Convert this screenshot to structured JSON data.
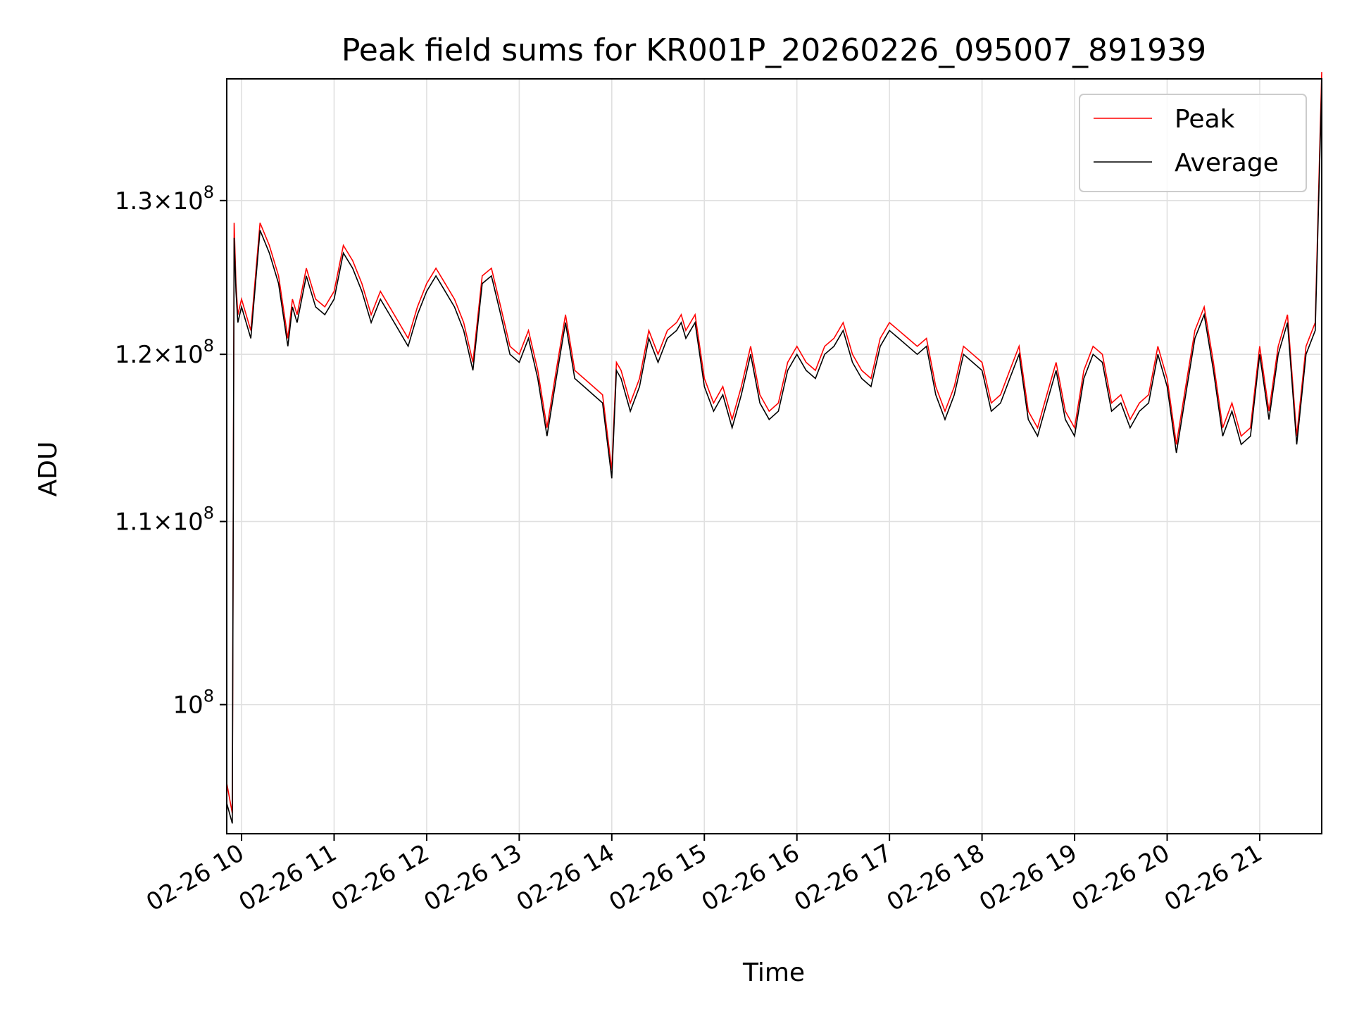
{
  "chart_data": {
    "type": "line",
    "title": "Peak field sums for KR001P_20260226_095007_891939",
    "xlabel": "Time",
    "ylabel": "ADU",
    "y_scale": "log",
    "ylim": [
      93500000,
      138500000
    ],
    "xlim_hours": [
      9.84,
      21.67
    ],
    "grid": true,
    "legend_position": "upper right",
    "x_ticks": [
      {
        "value": 10,
        "label": "02-26 10"
      },
      {
        "value": 11,
        "label": "02-26 11"
      },
      {
        "value": 12,
        "label": "02-26 12"
      },
      {
        "value": 13,
        "label": "02-26 13"
      },
      {
        "value": 14,
        "label": "02-26 14"
      },
      {
        "value": 15,
        "label": "02-26 15"
      },
      {
        "value": 16,
        "label": "02-26 16"
      },
      {
        "value": 17,
        "label": "02-26 17"
      },
      {
        "value": 18,
        "label": "02-26 18"
      },
      {
        "value": 19,
        "label": "02-26 19"
      },
      {
        "value": 20,
        "label": "02-26 20"
      },
      {
        "value": 21,
        "label": "02-26 21"
      }
    ],
    "y_ticks": [
      {
        "value": 100000000,
        "mantissa": "",
        "exponent": "8"
      },
      {
        "value": 110000000,
        "mantissa": "1.1",
        "exponent": "8"
      },
      {
        "value": 120000000,
        "mantissa": "1.2",
        "exponent": "8"
      },
      {
        "value": 130000000,
        "mantissa": "1.3",
        "exponent": "8"
      }
    ],
    "series": [
      {
        "name": "Peak",
        "color": "#ff0000"
      },
      {
        "name": "Average",
        "color": "#000000"
      }
    ],
    "x_hours": [
      9.84,
      9.9,
      9.92,
      9.94,
      9.96,
      10.0,
      10.1,
      10.2,
      10.3,
      10.4,
      10.5,
      10.55,
      10.6,
      10.7,
      10.8,
      10.9,
      11.0,
      11.1,
      11.2,
      11.3,
      11.4,
      11.5,
      11.6,
      11.7,
      11.8,
      11.9,
      12.0,
      12.1,
      12.2,
      12.3,
      12.4,
      12.5,
      12.6,
      12.7,
      12.8,
      12.9,
      13.0,
      13.1,
      13.2,
      13.3,
      13.4,
      13.5,
      13.6,
      13.7,
      13.8,
      13.9,
      14.0,
      14.05,
      14.1,
      14.2,
      14.3,
      14.4,
      14.5,
      14.6,
      14.7,
      14.75,
      14.8,
      14.85,
      14.9,
      15.0,
      15.1,
      15.2,
      15.3,
      15.4,
      15.5,
      15.6,
      15.7,
      15.8,
      15.9,
      16.0,
      16.1,
      16.2,
      16.3,
      16.4,
      16.5,
      16.6,
      16.7,
      16.8,
      16.9,
      17.0,
      17.1,
      17.2,
      17.3,
      17.4,
      17.5,
      17.6,
      17.7,
      17.8,
      17.9,
      18.0,
      18.1,
      18.2,
      18.3,
      18.4,
      18.5,
      18.6,
      18.7,
      18.8,
      18.9,
      19.0,
      19.1,
      19.2,
      19.3,
      19.4,
      19.5,
      19.6,
      19.7,
      19.8,
      19.9,
      20.0,
      20.1,
      20.2,
      20.3,
      20.4,
      20.5,
      20.6,
      20.7,
      20.8,
      20.9,
      21.0,
      21.1,
      21.2,
      21.3,
      21.4,
      21.5,
      21.6,
      21.67
    ],
    "average": [
      95000000,
      94000000,
      127500000,
      124000000,
      122000000,
      123000000,
      121000000,
      128000000,
      126500000,
      124500000,
      120500000,
      123000000,
      122000000,
      125000000,
      123000000,
      122500000,
      123500000,
      126500000,
      125500000,
      124000000,
      122000000,
      123500000,
      122500000,
      121500000,
      120500000,
      122500000,
      124000000,
      125000000,
      124000000,
      123000000,
      121500000,
      119000000,
      124500000,
      125000000,
      122500000,
      120000000,
      119500000,
      121000000,
      118500000,
      115000000,
      118500000,
      122000000,
      118500000,
      118000000,
      117500000,
      117000000,
      112500000,
      119000000,
      118500000,
      116500000,
      118000000,
      121000000,
      119500000,
      121000000,
      121500000,
      122000000,
      121000000,
      121500000,
      122000000,
      118000000,
      116500000,
      117500000,
      115500000,
      117500000,
      120000000,
      117000000,
      116000000,
      116500000,
      119000000,
      120000000,
      119000000,
      118500000,
      120000000,
      120500000,
      121500000,
      119500000,
      118500000,
      118000000,
      120500000,
      121500000,
      121000000,
      120500000,
      120000000,
      120500000,
      117500000,
      116000000,
      117500000,
      120000000,
      119500000,
      119000000,
      116500000,
      117000000,
      118500000,
      120000000,
      116000000,
      115000000,
      117000000,
      119000000,
      116000000,
      115000000,
      118500000,
      120000000,
      119500000,
      116500000,
      117000000,
      115500000,
      116500000,
      117000000,
      120000000,
      118000000,
      114000000,
      117500000,
      121000000,
      122500000,
      119000000,
      115000000,
      116500000,
      114500000,
      115000000,
      120000000,
      116000000,
      120000000,
      122000000,
      114500000,
      120000000,
      121500000,
      138000000
    ],
    "peak": [
      96000000,
      94500000,
      128500000,
      124500000,
      122500000,
      123500000,
      121500000,
      128500000,
      127000000,
      125000000,
      121000000,
      123500000,
      122500000,
      125500000,
      123500000,
      123000000,
      124000000,
      127000000,
      126000000,
      124500000,
      122500000,
      124000000,
      123000000,
      122000000,
      121000000,
      123000000,
      124500000,
      125500000,
      124500000,
      123500000,
      122000000,
      119500000,
      125000000,
      125500000,
      123000000,
      120500000,
      120000000,
      121500000,
      119000000,
      115500000,
      119000000,
      122500000,
      119000000,
      118500000,
      118000000,
      117500000,
      113000000,
      119500000,
      119000000,
      117000000,
      118500000,
      121500000,
      120000000,
      121500000,
      122000000,
      122500000,
      121500000,
      122000000,
      122500000,
      118500000,
      117000000,
      118000000,
      116000000,
      118000000,
      120500000,
      117500000,
      116500000,
      117000000,
      119500000,
      120500000,
      119500000,
      119000000,
      120500000,
      121000000,
      122000000,
      120000000,
      119000000,
      118500000,
      121000000,
      122000000,
      121500000,
      121000000,
      120500000,
      121000000,
      118000000,
      116500000,
      118000000,
      120500000,
      120000000,
      119500000,
      117000000,
      117500000,
      119000000,
      120500000,
      116500000,
      115500000,
      117500000,
      119500000,
      116500000,
      115500000,
      119000000,
      120500000,
      120000000,
      117000000,
      117500000,
      116000000,
      117000000,
      117500000,
      120500000,
      118500000,
      114500000,
      118000000,
      121500000,
      123000000,
      119500000,
      115500000,
      117000000,
      115000000,
      115500000,
      120500000,
      116500000,
      120500000,
      122500000,
      115000000,
      120500000,
      122000000,
      139000000
    ]
  }
}
